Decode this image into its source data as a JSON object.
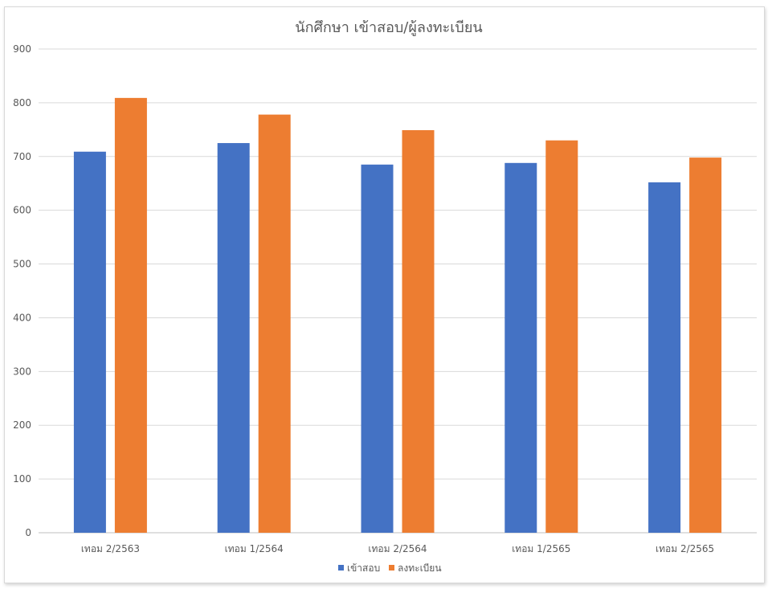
{
  "chart_data": {
    "type": "bar",
    "title": "นักศึกษา เข้าสอบ/ผู้ลงทะเบียน",
    "categories": [
      "เทอม 2/2563",
      "เทอม 1/2564",
      "เทอม 2/2564",
      "เทอม 1/2565",
      "เทอม 2/2565"
    ],
    "series": [
      {
        "name": "เข้าสอบ",
        "color": "#4472c4",
        "values": [
          709,
          725,
          685,
          688,
          652
        ]
      },
      {
        "name": "ลงทะเบียน",
        "color": "#ed7d31",
        "values": [
          809,
          778,
          749,
          730,
          698
        ]
      }
    ],
    "ylim": [
      0,
      900
    ],
    "yticks": [
      "0",
      "100",
      "200",
      "300",
      "400",
      "500",
      "600",
      "700",
      "800",
      "900"
    ],
    "grid": true,
    "legend": "bottom"
  }
}
